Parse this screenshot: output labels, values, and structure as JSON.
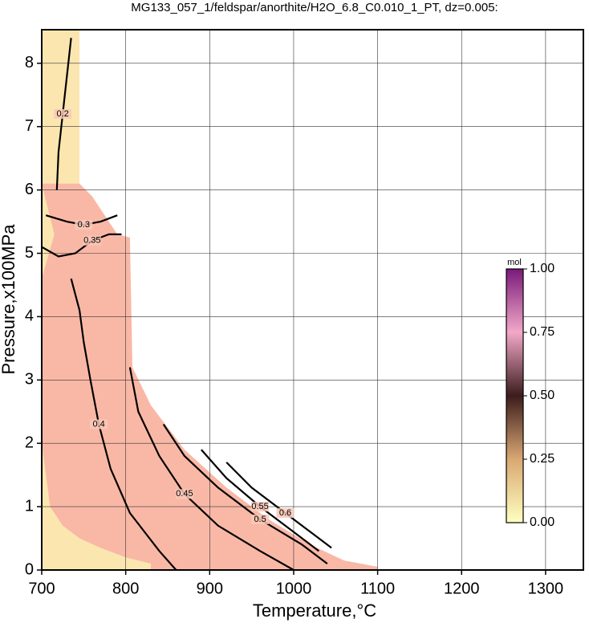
{
  "chart_data": {
    "type": "contour",
    "title": "MG133_057_1/feldspar/anorthite/H2O_6.8_C0.010_1_PT, dz=0.005:",
    "x_label": "Temperature,°C",
    "y_label": "Pressure,x100MPa",
    "xlim": [
      700,
      1345
    ],
    "ylim": [
      0,
      8.53
    ],
    "xticks": [
      700,
      800,
      900,
      1000,
      1100,
      1200,
      1300
    ],
    "yticks": [
      0,
      1,
      2,
      3,
      4,
      5,
      6,
      7,
      8
    ],
    "grid": true,
    "regions": [
      {
        "color": "#fbe6b0",
        "x": [
          700,
          745,
          745,
          700
        ],
        "y": [
          8.53,
          8.53,
          0,
          0
        ]
      },
      {
        "color": "#f9b8a6",
        "x": [
          700,
          745,
          760,
          790,
          805,
          808,
          830,
          870,
          920,
          970,
          1020,
          1060,
          1100,
          1100,
          700
        ],
        "y": [
          6.1,
          6.1,
          5.9,
          5.3,
          5.25,
          3.2,
          2.6,
          1.9,
          1.3,
          0.8,
          0.4,
          0.15,
          0.05,
          0,
          0
        ]
      },
      {
        "color": "#fbe6b0",
        "x": [
          700,
          710,
          725,
          745,
          770,
          800,
          830,
          830,
          700
        ],
        "y": [
          2.0,
          1.0,
          0.7,
          0.5,
          0.35,
          0.2,
          0.1,
          0,
          0
        ]
      },
      {
        "color": "#fbe6b0",
        "x": [
          700,
          715,
          700
        ],
        "y": [
          6.1,
          5.3,
          4.6
        ]
      }
    ],
    "contours": [
      {
        "level": 0.2,
        "x": [
          735,
          730,
          725,
          720,
          718
        ],
        "y": [
          8.4,
          7.8,
          7.2,
          6.6,
          6.0
        ]
      },
      {
        "level": 0.3,
        "x": [
          705,
          730,
          750,
          770,
          790
        ],
        "y": [
          5.6,
          5.5,
          5.45,
          5.5,
          5.6
        ]
      },
      {
        "level": 0.35,
        "x": [
          700,
          720,
          740,
          760,
          780,
          795
        ],
        "y": [
          5.1,
          4.95,
          5.0,
          5.2,
          5.3,
          5.3
        ]
      },
      {
        "level": 0.4,
        "x": [
          735,
          745,
          750,
          758,
          768,
          782,
          805,
          840,
          860
        ],
        "y": [
          4.6,
          4.1,
          3.6,
          3.0,
          2.3,
          1.6,
          0.9,
          0.3,
          0
        ]
      },
      {
        "level": 0.45,
        "x": [
          805,
          815,
          840,
          870,
          910,
          960,
          1000
        ],
        "y": [
          3.2,
          2.5,
          1.8,
          1.2,
          0.7,
          0.3,
          0
        ]
      },
      {
        "level": 0.5,
        "x": [
          845,
          870,
          910,
          960,
          1010,
          1040
        ],
        "y": [
          2.3,
          1.8,
          1.3,
          0.8,
          0.4,
          0.1
        ]
      },
      {
        "level": 0.55,
        "x": [
          890,
          920,
          960,
          1000,
          1030
        ],
        "y": [
          1.9,
          1.45,
          1.0,
          0.6,
          0.3
        ]
      },
      {
        "level": 0.6,
        "x": [
          920,
          950,
          990,
          1020,
          1045
        ],
        "y": [
          1.7,
          1.3,
          0.9,
          0.6,
          0.35
        ]
      }
    ],
    "colorbar": {
      "unit": "mol",
      "stops": [
        {
          "value": 0,
          "color": "#ffffc0"
        },
        {
          "value": 0.25,
          "color": "#d9a873"
        },
        {
          "value": 0.5,
          "color": "#3c1c1c"
        },
        {
          "value": 0.75,
          "color": "#f2a8c8"
        },
        {
          "value": 1,
          "color": "#7a1a7a"
        }
      ],
      "ticks": [
        {
          "value": 0,
          "label": "0.00"
        },
        {
          "value": 0.25,
          "label": "0.25"
        },
        {
          "value": 0.5,
          "label": "0.50"
        },
        {
          "value": 0.75,
          "label": "0.75"
        },
        {
          "value": 1,
          "label": "1.00"
        }
      ]
    }
  }
}
